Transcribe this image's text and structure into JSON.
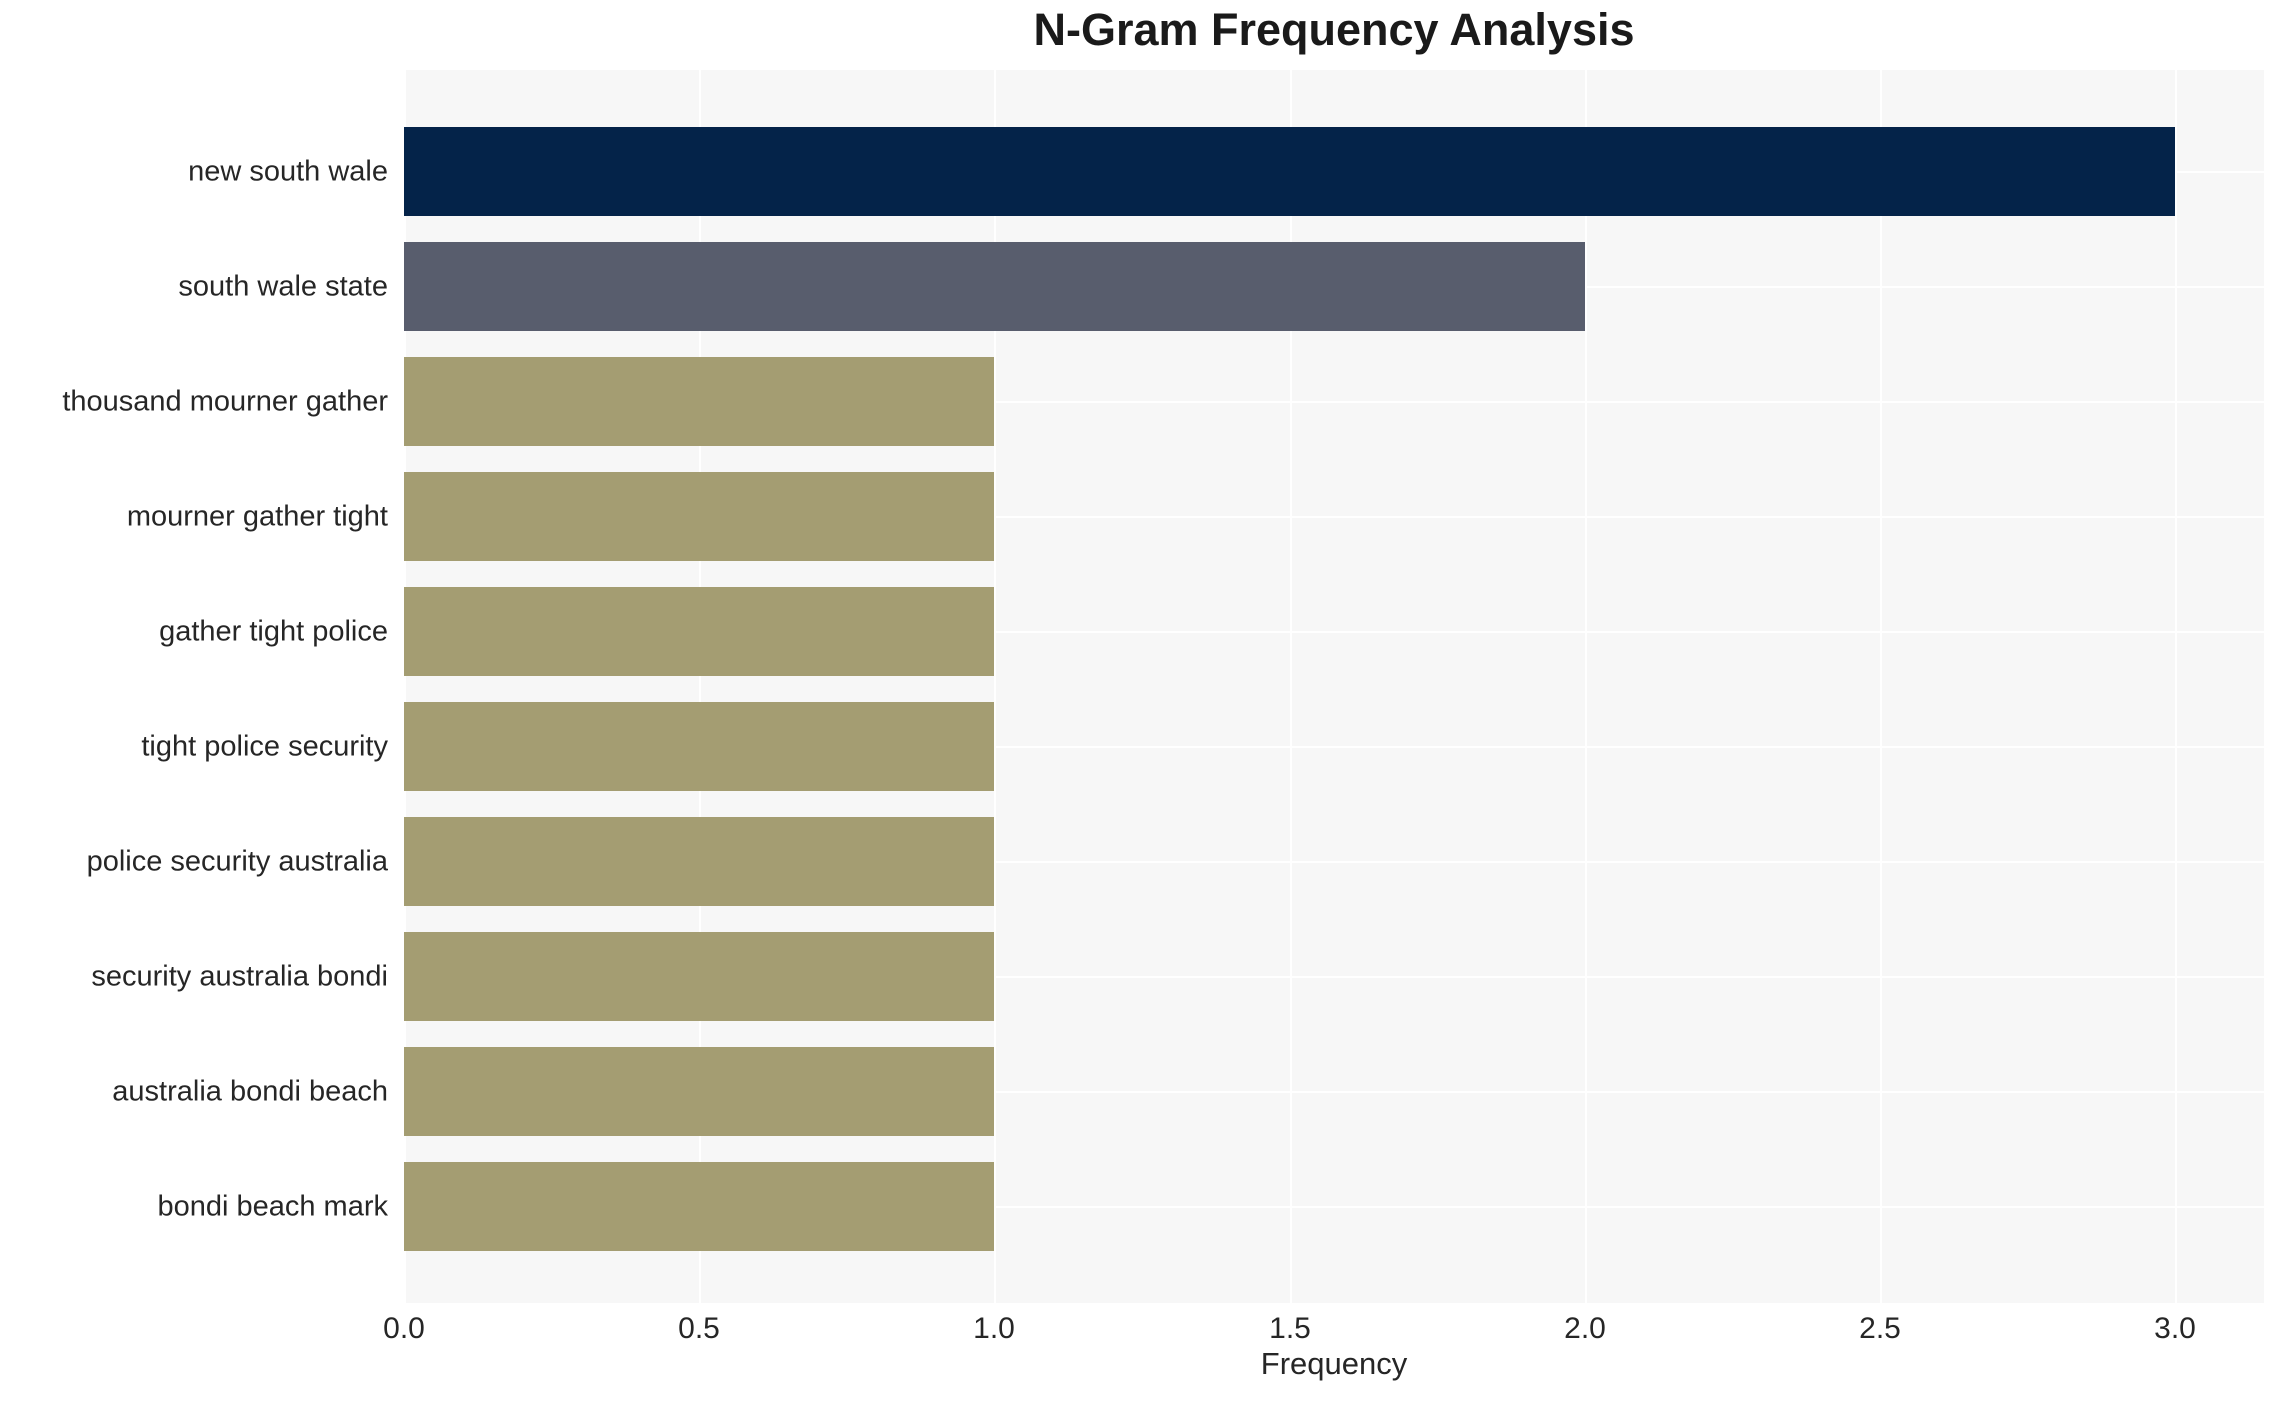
{
  "chart_data": {
    "type": "bar",
    "orientation": "horizontal",
    "title": "N-Gram Frequency Analysis",
    "xlabel": "Frequency",
    "ylabel": "",
    "categories": [
      "new south wale",
      "south wale state",
      "thousand mourner gather",
      "mourner gather tight",
      "gather tight police",
      "tight police security",
      "police security australia",
      "security australia bondi",
      "australia bondi beach",
      "bondi beach mark"
    ],
    "values": [
      3,
      2,
      1,
      1,
      1,
      1,
      1,
      1,
      1,
      1
    ],
    "bar_colors": [
      "#042349",
      "#585d6d",
      "#a49d72",
      "#a49d72",
      "#a49d72",
      "#a49d72",
      "#a49d72",
      "#a49d72",
      "#a49d72",
      "#a49d72"
    ],
    "x_ticks": [
      0.0,
      0.5,
      1.0,
      1.5,
      2.0,
      2.5,
      3.0
    ],
    "x_tick_labels": [
      "0.0",
      "0.5",
      "1.0",
      "1.5",
      "2.0",
      "2.5",
      "3.0"
    ],
    "xlim": [
      0,
      3.15
    ],
    "grid": true,
    "legend": false,
    "plot_background": "#f7f7f7",
    "grid_color": "#ffffff",
    "text_color": "#262626"
  }
}
